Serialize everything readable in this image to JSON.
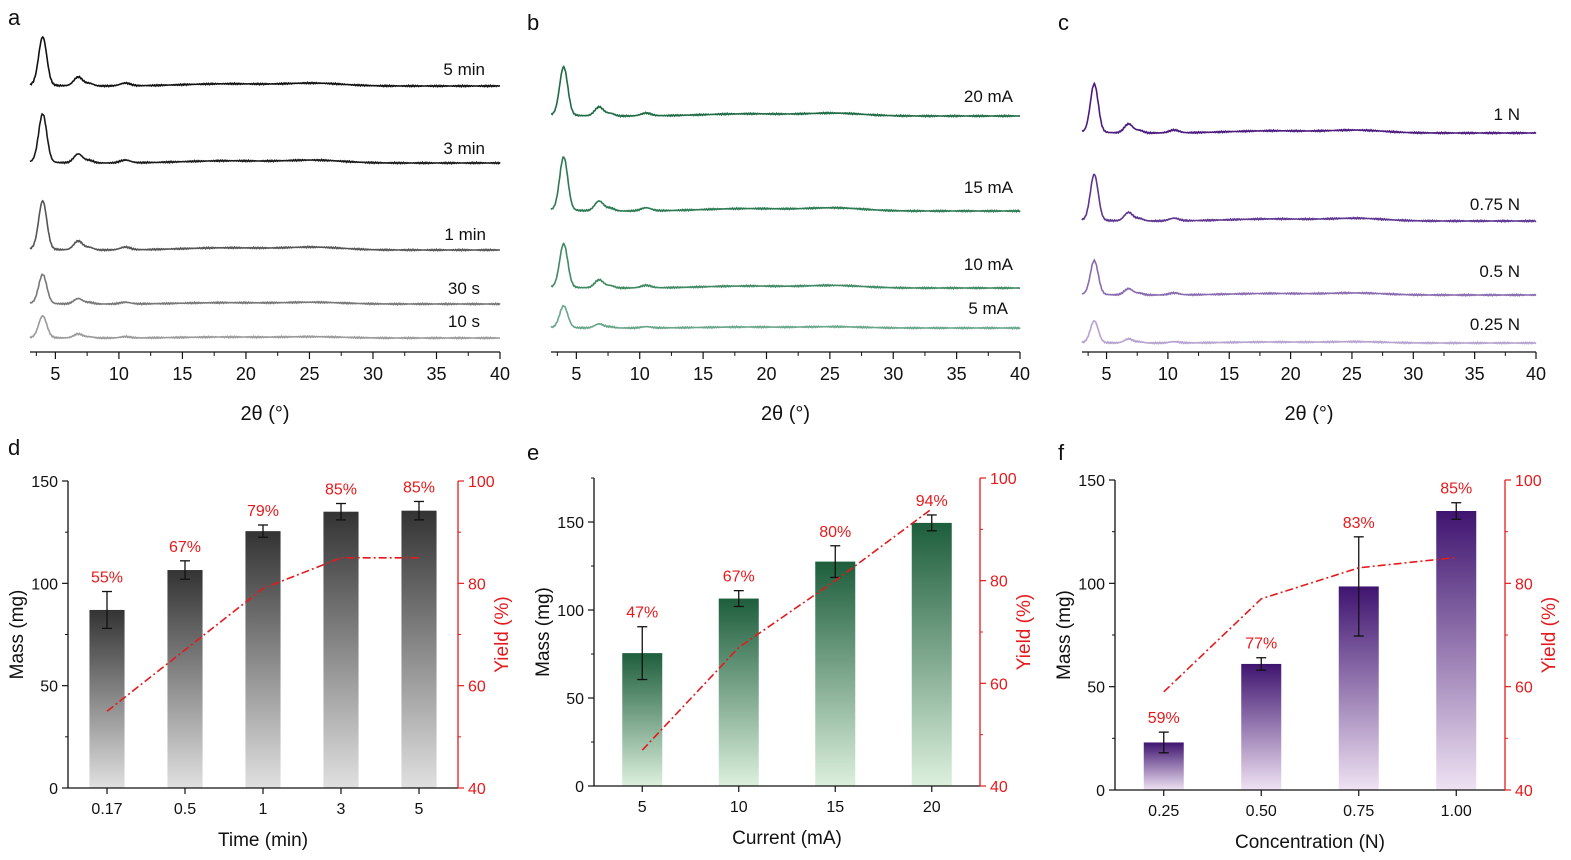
{
  "chart_data": [
    {
      "panel": "a",
      "type": "line",
      "xlabel": "2θ (°)",
      "xlim": [
        3,
        40
      ],
      "xticks": [
        5,
        10,
        15,
        20,
        25,
        30,
        35,
        40
      ],
      "series": [
        {
          "name": "5 min",
          "color": "#111111",
          "scale": 1.0
        },
        {
          "name": "3 min",
          "color": "#1a1a1a",
          "scale": 1.0
        },
        {
          "name": "1 min",
          "color": "#555555",
          "scale": 1.0
        },
        {
          "name": "30 s",
          "color": "#777777",
          "scale": 0.6
        },
        {
          "name": "10 s",
          "color": "#9a9a9a",
          "scale": 0.45
        }
      ]
    },
    {
      "panel": "b",
      "type": "line",
      "xlabel": "2θ (°)",
      "xlim": [
        3,
        40
      ],
      "xticks": [
        5,
        10,
        15,
        20,
        25,
        30,
        35,
        40
      ],
      "series": [
        {
          "name": "20 mA",
          "color": "#1e6b44",
          "scale": 1.0
        },
        {
          "name": "15 mA",
          "color": "#2b7a52",
          "scale": 1.1
        },
        {
          "name": "10 mA",
          "color": "#3f8a63",
          "scale": 0.9
        },
        {
          "name": "5 mA",
          "color": "#6aa68a",
          "scale": 0.45
        }
      ]
    },
    {
      "panel": "c",
      "type": "line",
      "xlabel": "2θ (°)",
      "xlim": [
        3,
        40
      ],
      "xticks": [
        5,
        10,
        15,
        20,
        25,
        30,
        35,
        40
      ],
      "series": [
        {
          "name": "1 N",
          "color": "#4b1a7e",
          "scale": 1.0
        },
        {
          "name": "0.75 N",
          "color": "#5e3590",
          "scale": 0.95
        },
        {
          "name": "0.5 N",
          "color": "#8a6bb0",
          "scale": 0.7
        },
        {
          "name": "0.25 N",
          "color": "#b7a3d0",
          "scale": 0.45
        }
      ]
    },
    {
      "panel": "d",
      "type": "bar",
      "xlabel": "Time (min)",
      "ylabel": "Mass (mg)",
      "y2label": "Yield (%)",
      "categories": [
        "0.17",
        "0.5",
        "1",
        "3",
        "5"
      ],
      "mass": [
        87,
        106.5,
        125.5,
        135,
        135.5
      ],
      "mass_err": [
        9,
        4.5,
        3,
        4,
        4.5
      ],
      "yield": [
        55,
        67,
        79,
        85,
        85
      ],
      "yield_labels": [
        "55%",
        "67%",
        "79%",
        "85%",
        "85%"
      ],
      "ylim": [
        0,
        150
      ],
      "yticks": [
        0,
        50,
        100,
        150
      ],
      "y2lim": [
        40,
        100
      ],
      "y2ticks": [
        40,
        60,
        80,
        100
      ],
      "bar_top_color": "#333333",
      "bar_bottom_color": "#e0e0e0",
      "yield_color": "#e41a1c"
    },
    {
      "panel": "e",
      "type": "bar",
      "xlabel": "Current (mA)",
      "ylabel": "Mass (mg)",
      "y2label": "Yield (%)",
      "categories": [
        "5",
        "10",
        "15",
        "20"
      ],
      "mass": [
        75.5,
        106.5,
        127.5,
        149.5
      ],
      "mass_err": [
        15,
        4.5,
        9,
        4.5
      ],
      "yield": [
        47,
        67,
        80,
        94
      ],
      "yield_labels": [
        "47%",
        "67%",
        "80%",
        "94%"
      ],
      "ylim": [
        0,
        175
      ],
      "yticks": [
        0,
        50,
        100,
        150
      ],
      "y2lim": [
        40,
        100
      ],
      "y2ticks": [
        40,
        60,
        80,
        100
      ],
      "bar_top_color": "#1d5e3c",
      "bar_bottom_color": "#dcf0dd",
      "yield_color": "#e41a1c"
    },
    {
      "panel": "f",
      "type": "bar",
      "xlabel": "Concentration (N)",
      "ylabel": "Mass (mg)",
      "y2label": "Yield (%)",
      "categories": [
        "0.25",
        "0.50",
        "0.75",
        "1.00"
      ],
      "mass": [
        23,
        61,
        98.5,
        135
      ],
      "mass_err": [
        5,
        3,
        24,
        4
      ],
      "yield": [
        59,
        77,
        83,
        85
      ],
      "yield_labels": [
        "59%",
        "77%",
        "83%",
        "85%"
      ],
      "ylim": [
        0,
        150
      ],
      "yticks": [
        0,
        50,
        100,
        150
      ],
      "y2lim": [
        40,
        100
      ],
      "y2ticks": [
        40,
        60,
        80,
        100
      ],
      "bar_top_color": "#3f1470",
      "bar_bottom_color": "#efe2f3",
      "yield_color": "#e41a1c"
    }
  ]
}
